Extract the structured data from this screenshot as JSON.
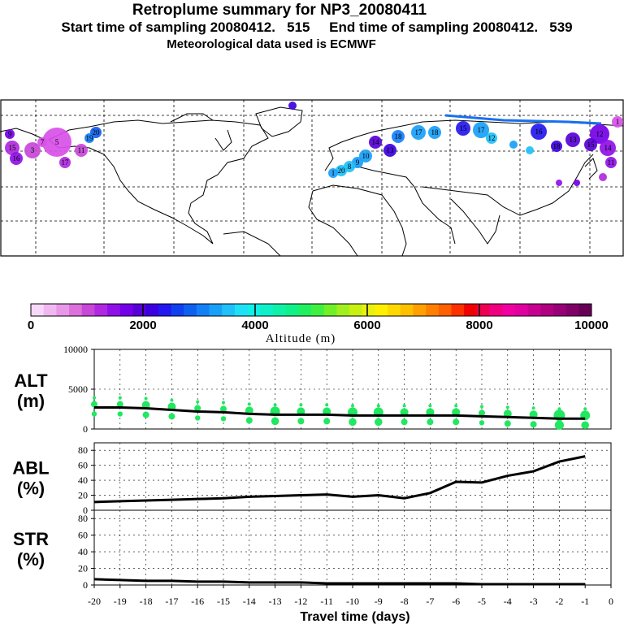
{
  "header": {
    "title": "Retroplume summary for NP3_20080411",
    "line2": "Start time of sampling 20080412.   515     End time of sampling 20080412.   539",
    "line3": "Meteorological data used is ECMWF"
  },
  "colorbar": {
    "colors": [
      "#f8d8f8",
      "#f0b8f0",
      "#e898e8",
      "#dc70dc",
      "#c848d8",
      "#b028e0",
      "#9010e8",
      "#7400e8",
      "#5800d8",
      "#3c00e0",
      "#2418f0",
      "#1040f0",
      "#1060f0",
      "#1480f8",
      "#18a0f8",
      "#20c0f8",
      "#20e0f8",
      "#10f0e8",
      "#10f0c8",
      "#10f0a8",
      "#10f088",
      "#20f060",
      "#40f040",
      "#70f028",
      "#a0f020",
      "#c8f010",
      "#e8f010",
      "#fff000",
      "#ffd800",
      "#ffc000",
      "#ffa000",
      "#ff8000",
      "#ff6000",
      "#ff3000",
      "#f00000",
      "#f00050",
      "#f00080",
      "#f000a0",
      "#e000a0",
      "#c80090",
      "#b00080",
      "#980078",
      "#800068",
      "#680058"
    ],
    "tick_labels": [
      "0",
      "2000",
      "4000",
      "6000",
      "8000",
      "10000"
    ],
    "label": "Altitude (m)"
  },
  "map_labels": [
    "1",
    "3",
    "5",
    "6",
    "7",
    "8",
    "9",
    "10",
    "11",
    "12",
    "13",
    "14",
    "15",
    "16",
    "17",
    "18",
    "19",
    "20"
  ],
  "chart_data": [
    {
      "type": "line",
      "name": "ALT",
      "label_top": "ALT",
      "label_bottom": "(m)",
      "ylim": [
        0,
        10000
      ],
      "yticks": [
        "0",
        "5000",
        "10000"
      ],
      "x": [
        -20,
        -19,
        -18,
        -17,
        -16,
        -15,
        -14,
        -13,
        -12,
        -11,
        -10,
        -9,
        -8,
        -7,
        -6,
        -5,
        -4,
        -3,
        -2,
        -1
      ],
      "values": [
        2700,
        2700,
        2600,
        2400,
        2200,
        2100,
        1900,
        1800,
        1800,
        1800,
        1700,
        1700,
        1700,
        1700,
        1700,
        1600,
        1500,
        1400,
        1300,
        1300
      ],
      "scatter_color": "#20e860"
    },
    {
      "type": "line",
      "name": "ABL",
      "label_top": "ABL",
      "label_bottom": "(%)",
      "ylim": [
        0,
        90
      ],
      "yticks": [
        "0",
        "20",
        "40",
        "60",
        "80"
      ],
      "x": [
        -20,
        -19,
        -18,
        -17,
        -16,
        -15,
        -14,
        -13,
        -12,
        -11,
        -10,
        -9,
        -8,
        -7,
        -6,
        -5,
        -4,
        -3,
        -2,
        -1
      ],
      "values": [
        11,
        12,
        13,
        14,
        15,
        16,
        18,
        19,
        20,
        21,
        18,
        20,
        16,
        23,
        38,
        37,
        46,
        52,
        65,
        72
      ]
    },
    {
      "type": "line",
      "name": "STR",
      "label_top": "STR",
      "label_bottom": "(%)",
      "ylim": [
        0,
        90
      ],
      "yticks": [
        "0",
        "20",
        "40",
        "60",
        "80"
      ],
      "x": [
        -20,
        -19,
        -18,
        -17,
        -16,
        -15,
        -14,
        -13,
        -12,
        -11,
        -10,
        -9,
        -8,
        -7,
        -6,
        -5,
        -4,
        -3,
        -2,
        -1
      ],
      "values": [
        7,
        6,
        5,
        5,
        4,
        4,
        3,
        3,
        3,
        2,
        2,
        2,
        2,
        2,
        2,
        1,
        1,
        1,
        1,
        1
      ]
    }
  ],
  "xaxis": {
    "tick_labels": [
      "-20",
      "-19",
      "-18",
      "-17",
      "-16",
      "-15",
      "-14",
      "-13",
      "-12",
      "-11",
      "-10",
      "-9",
      "-8",
      "-7",
      "-6",
      "-5",
      "-4",
      "-3",
      "-2",
      "-1",
      "0"
    ],
    "label": "Travel time (days)"
  }
}
